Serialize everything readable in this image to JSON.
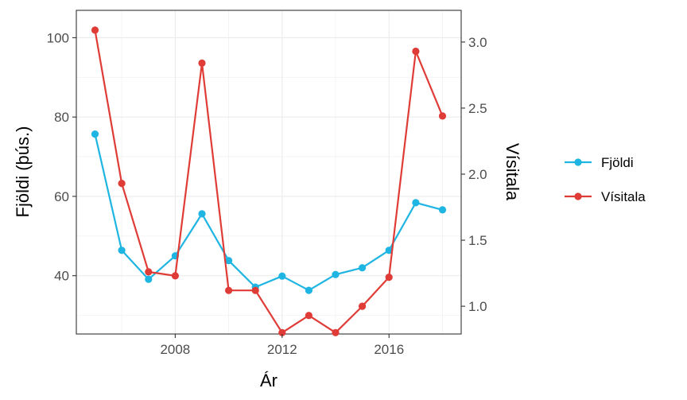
{
  "chart_data": {
    "type": "line",
    "xlabel": "Ár",
    "ylabel_left": "Fjöldi (þús.)",
    "ylabel_right": "Vísitala",
    "x": [
      2005,
      2006,
      2007,
      2008,
      2009,
      2010,
      2011,
      2012,
      2013,
      2014,
      2015,
      2016,
      2017,
      2018
    ],
    "xlim": [
      2004.3,
      2018.7
    ],
    "x_ticks": [
      2008,
      2012,
      2016
    ],
    "x_tick_labels": [
      "2008",
      "2012",
      "2016"
    ],
    "ylim_left": [
      25.3,
      106.9
    ],
    "y_ticks_left": [
      40,
      60,
      80,
      100
    ],
    "y_tick_labels_left": [
      "40",
      "60",
      "80",
      "100"
    ],
    "ylim_right": [
      0.79,
      3.24
    ],
    "y_ticks_right": [
      1.0,
      1.5,
      2.0,
      2.5,
      3.0
    ],
    "y_tick_labels_right": [
      "1.0",
      "1.5",
      "2.0",
      "2.5",
      "3.0"
    ],
    "grid": true,
    "legend_position": "right",
    "series": [
      {
        "name": "Fjöldi",
        "axis": "left",
        "color": "#1fb5e2",
        "values": [
          75.7,
          46.4,
          39.1,
          45.0,
          55.6,
          43.8,
          37.1,
          39.9,
          36.3,
          40.3,
          42.0,
          46.4,
          58.4,
          56.6
        ]
      },
      {
        "name": "Vísitala",
        "axis": "right",
        "color": "#e03c37",
        "values": [
          3.09,
          1.93,
          1.26,
          1.23,
          2.84,
          1.12,
          1.12,
          0.8,
          0.93,
          0.8,
          1.0,
          1.22,
          2.93,
          2.44
        ]
      }
    ]
  }
}
